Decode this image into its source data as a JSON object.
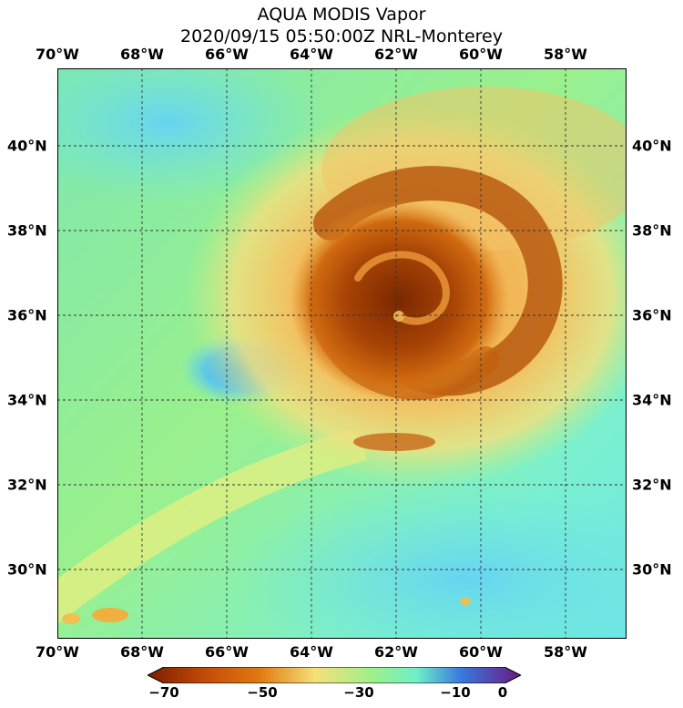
{
  "title": {
    "line1": "AQUA MODIS Vapor",
    "line2": "2020/09/15 05:50:00Z NRL-Monterey"
  },
  "map": {
    "longitude_labels": [
      "70°W",
      "68°W",
      "66°W",
      "64°W",
      "62°W",
      "60°W",
      "58°W"
    ],
    "latitude_labels": [
      "40°N",
      "38°N",
      "36°N",
      "34°N",
      "32°N",
      "30°N"
    ],
    "lon_extent_deg_w": [
      70,
      56.6
    ],
    "lat_extent_deg_n": [
      28.5,
      41.8
    ],
    "storm_center": {
      "lon_deg_w": 62,
      "lat_deg_n": 36.6
    }
  },
  "colorbar": {
    "tick_labels": [
      "−70",
      "−50",
      "−30",
      "−10",
      "0"
    ],
    "tick_values": [
      -70,
      -50,
      -30,
      -10,
      0
    ],
    "range": [
      -70,
      0
    ],
    "colors": {
      "low": "#7a1c00",
      "mid_low": "#e07a10",
      "mid": "#f5e07a",
      "mid_high": "#6ef0c8",
      "high_blue": "#3a78e0",
      "top": "#6a1a80"
    }
  }
}
